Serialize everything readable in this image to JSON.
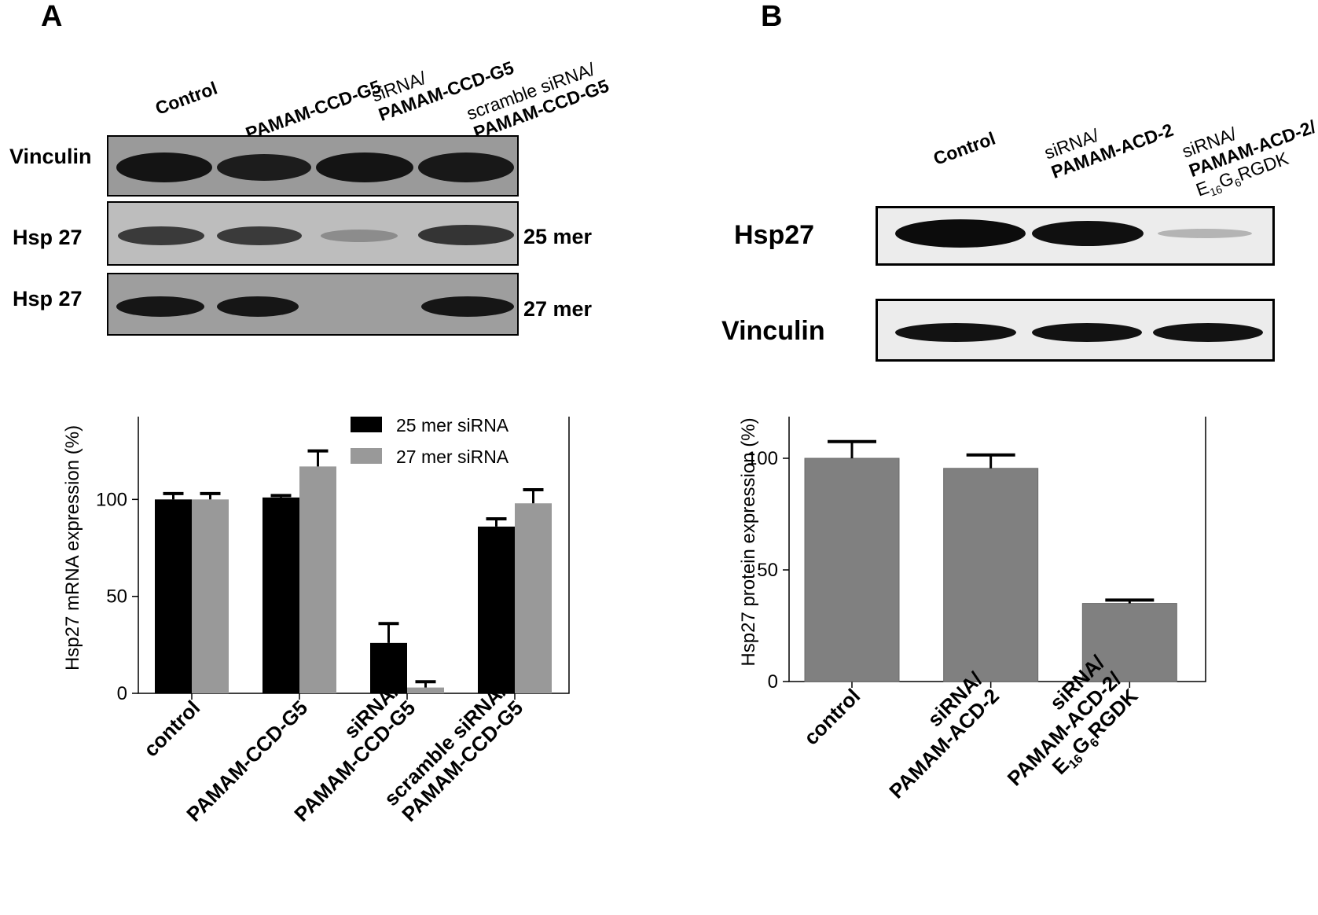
{
  "panelA": {
    "letter": "A",
    "blot_lanes": [
      {
        "line1": "",
        "line2": "Control"
      },
      {
        "line1": "",
        "line2": "PAMAM-CCD-G5"
      },
      {
        "line1": "siRNA/",
        "line2": "PAMAM-CCD-G5"
      },
      {
        "line1": "scramble siRNA/",
        "line2": "PAMAM-CCD-G5"
      }
    ],
    "rows": {
      "vinculin": "Vinculin",
      "hsp27_25": "Hsp 27",
      "hsp27_27": "Hsp 27",
      "mer25": "25 mer",
      "mer27": "27 mer"
    }
  },
  "panelB": {
    "letter": "B",
    "blot_lanes": [
      {
        "line1": "",
        "line2": "Control",
        "line3": ""
      },
      {
        "line1": "siRNA/",
        "line2": "PAMAM-ACD-2",
        "line3": ""
      },
      {
        "line1": "siRNA/",
        "line2": "PAMAM-ACD-2/",
        "line3": "E16G6RGDK"
      }
    ],
    "rows": {
      "hsp27": "Hsp27",
      "vinculin": "Vinculin"
    }
  },
  "chart_data": [
    {
      "type": "bar",
      "ylabel": "Hsp27 mRNA expression (%)",
      "ylim": [
        0,
        150
      ],
      "yticks": [
        0,
        50,
        100,
        150
      ],
      "categories": [
        "control",
        "PAMAM-CCD-G5",
        "siRNA/\nPAMAM-CCD-G5",
        "scramble siRNA/\nPAMAM-CCD-G5"
      ],
      "series": [
        {
          "name": "25 mer siRNA",
          "color": "#000000",
          "values": [
            100,
            101,
            26,
            86
          ],
          "errors": [
            3,
            1,
            10,
            4
          ]
        },
        {
          "name": "27 mer siRNA",
          "color": "#999999",
          "values": [
            100,
            117,
            3,
            98
          ],
          "errors": [
            3,
            8,
            3,
            7
          ]
        }
      ],
      "legend": "top-right"
    },
    {
      "type": "bar",
      "ylabel": "Hsp27 protein expression (%)",
      "ylim": [
        0,
        125
      ],
      "yticks": [
        0,
        50,
        100
      ],
      "categories": [
        "control",
        "siRNA/\nPAMAM-ACD-2",
        "siRNA/\nPAMAM-ACD-2/\nE16G6RGDK"
      ],
      "series": [
        {
          "name": "Hsp27 protein",
          "color": "#808080",
          "values": [
            100,
            95.5,
            35
          ],
          "errors": [
            7.5,
            6,
            1.5
          ]
        }
      ]
    }
  ]
}
